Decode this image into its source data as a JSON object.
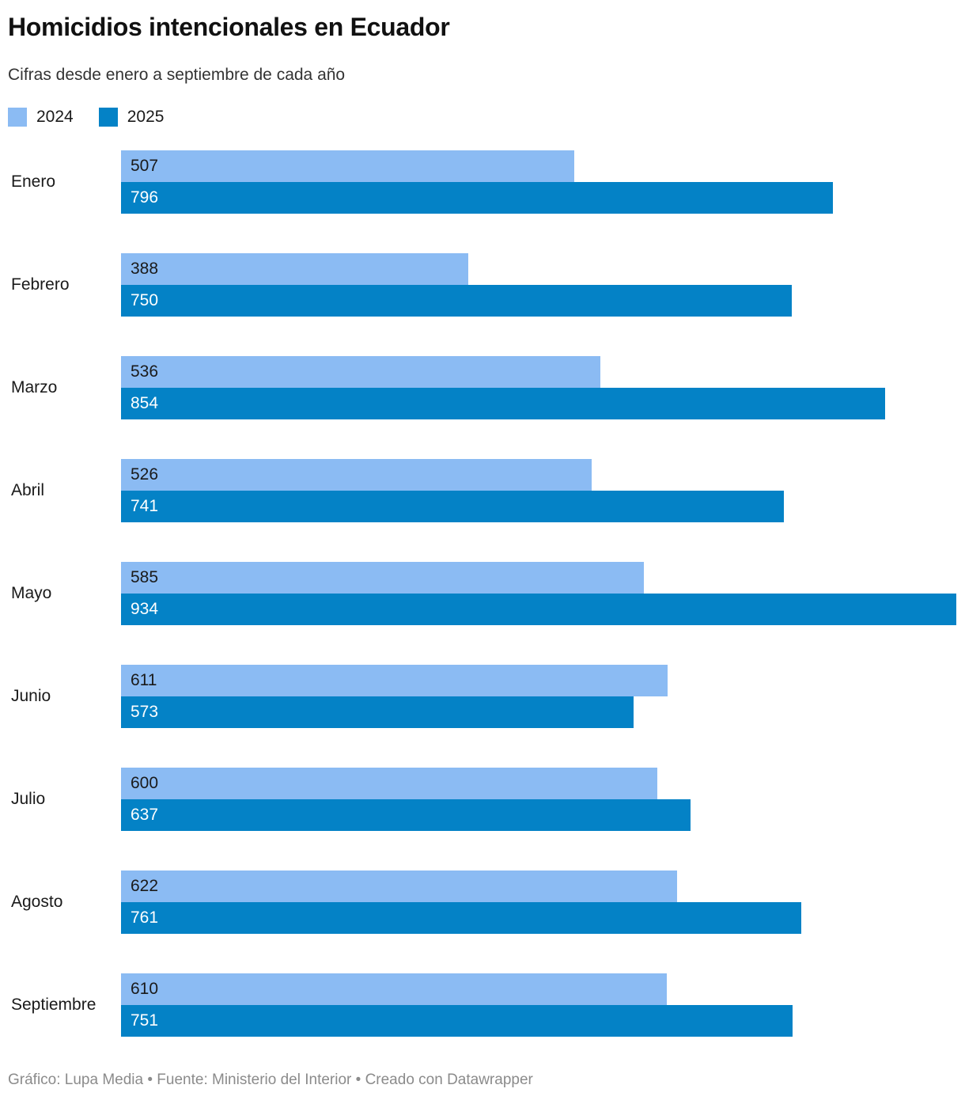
{
  "header": {
    "title": "Homicidios intencionales en Ecuador",
    "subtitle": "Cifras desde enero a septiembre de cada año"
  },
  "footer": {
    "credit": "Gráfico: Lupa Media • Fuente: Ministerio del Interior • Creado con Datawrapper"
  },
  "chart_data": {
    "type": "bar",
    "orientation": "horizontal",
    "title": "Homicidios intencionales en Ecuador",
    "subtitle": "Cifras desde enero a septiembre de cada año",
    "categories": [
      "Enero",
      "Febrero",
      "Marzo",
      "Abril",
      "Mayo",
      "Junio",
      "Julio",
      "Agosto",
      "Septiembre"
    ],
    "series": [
      {
        "name": "2024",
        "color": "#8bbbf3",
        "values": [
          507,
          388,
          536,
          526,
          585,
          611,
          600,
          622,
          610
        ]
      },
      {
        "name": "2025",
        "color": "#0482c6",
        "values": [
          796,
          750,
          854,
          741,
          934,
          573,
          637,
          761,
          751
        ]
      }
    ],
    "xlim": [
      0,
      934
    ],
    "value_labels": "inside-start",
    "legend_position": "top-left",
    "grid": false
  }
}
